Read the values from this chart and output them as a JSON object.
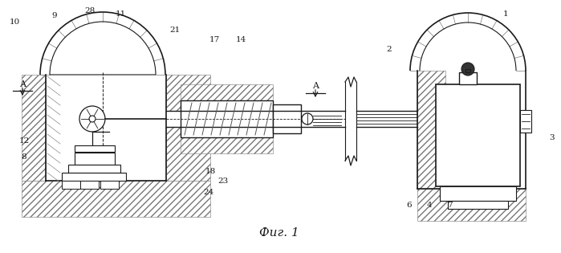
{
  "bg_color": "#ffffff",
  "line_color": "#1a1a1a",
  "fig_caption": "Фиг. 1",
  "caption_fontsize": 11
}
